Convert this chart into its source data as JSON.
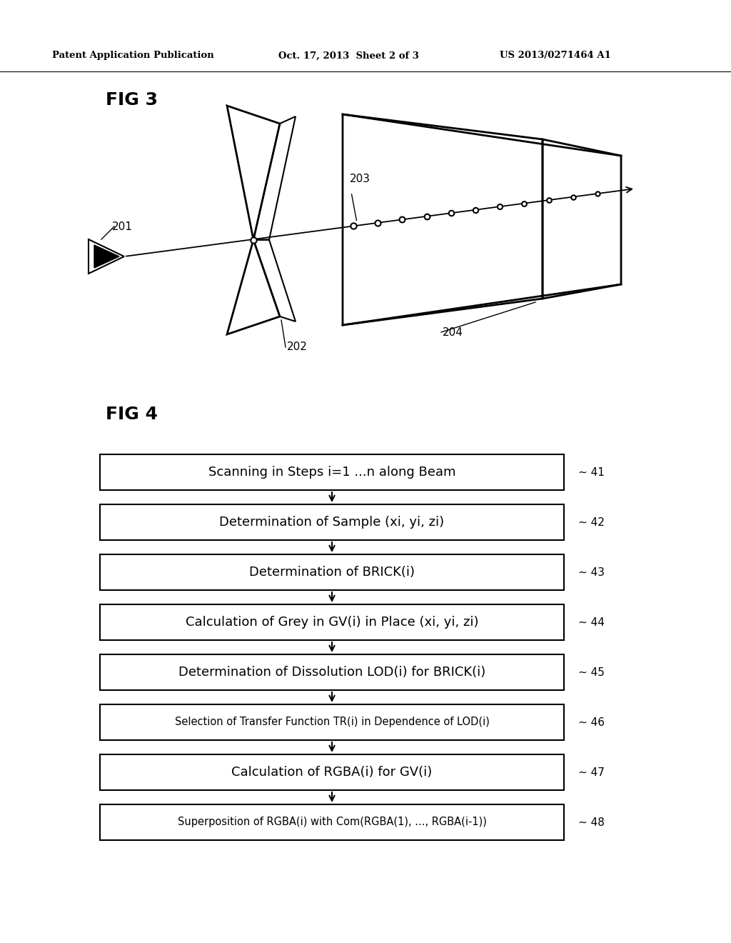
{
  "bg_color": "#ffffff",
  "header_left": "Patent Application Publication",
  "header_center": "Oct. 17, 2013  Sheet 2 of 3",
  "header_right": "US 2013/0271464 A1",
  "fig3_label": "FIG 3",
  "fig4_label": "FIG 4",
  "flowchart_boxes": [
    {
      "label": "Scanning in Steps i=1 ...n along Beam",
      "ref": "41",
      "fontsize": 13
    },
    {
      "label": "Determination of Sample (xi, yi, zi)",
      "ref": "42",
      "fontsize": 13
    },
    {
      "label": "Determination of BRICK(i)",
      "ref": "43",
      "fontsize": 13
    },
    {
      "label": "Calculation of Grey in GV(i) in Place (xi, yi, zi)",
      "ref": "44",
      "fontsize": 13
    },
    {
      "label": "Determination of Dissolution LOD(i) for BRICK(i)",
      "ref": "45",
      "fontsize": 13
    },
    {
      "label": "Selection of Transfer Function TR(i) in Dependence of LOD(i)",
      "ref": "46",
      "fontsize": 10.5
    },
    {
      "label": "Calculation of RGBA(i) for GV(i)",
      "ref": "47",
      "fontsize": 13
    },
    {
      "label": "Superposition of RGBA(i) with Com(RGBA(1), ..., RGBA(i-1))",
      "ref": "48",
      "fontsize": 10.5
    }
  ]
}
